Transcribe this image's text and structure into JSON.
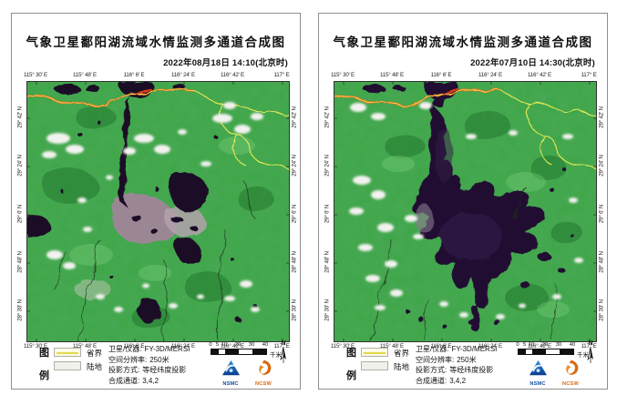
{
  "shared": {
    "title": "气象卫星鄱阳湖流域水情监测多通道合成图",
    "axis": {
      "lon": [
        "115° 30' E",
        "115° 48' E",
        "116° 6' E",
        "116° 24' E",
        "116° 42' E",
        "117° E"
      ],
      "lat": [
        "29° 42' N",
        "29° 24' N",
        "29° 6' N",
        "28° 48' N",
        "28° 30' N"
      ]
    },
    "legend": {
      "fig_char_top": "图",
      "fig_char_bottom": "例",
      "boundary_label": "省界",
      "land_label": "陆地",
      "sat_label": "卫星/仪器:",
      "sat_value": "FY-3D/MERSI",
      "res_label": "空间分辨率:",
      "res_value": "250米",
      "proj_label": "投影方式:",
      "proj_value": "等经纬度投影",
      "chan_label": "合成通道:",
      "chan_value": "3,4,2"
    },
    "scalebar": {
      "ticks": [
        "0",
        "5",
        "10",
        "20",
        "30",
        "40"
      ],
      "unit": "千米"
    },
    "north_label": "N",
    "logos": {
      "nsmc": "NSMC",
      "ncsw": "NCSW"
    },
    "colors": {
      "vegetation_green": "#3ea546",
      "water_dark_purple": "#1d0c28",
      "flood_purple": "#35184a",
      "mud_flat": "#9b8794",
      "cloud_white": "#f2f2ee",
      "province_boundary_yellow": "#e9ea52",
      "yangtze_orange": "#c87628",
      "yangtze_inner_yellow": "#ffd34f",
      "logo_blue": "#0b4da0",
      "logo_orange": "#d86a12"
    }
  },
  "panels": [
    {
      "timestamp": "2022年08月18日  14:10(北京时)"
    },
    {
      "timestamp": "2022年07月10日  14:30(北京时)"
    }
  ]
}
